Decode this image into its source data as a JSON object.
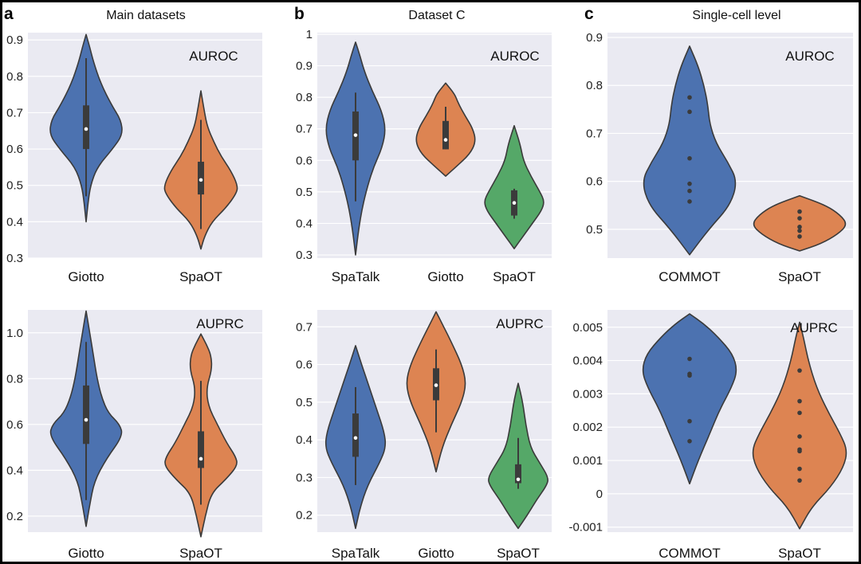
{
  "colors": {
    "blue": "#4c72b0",
    "orange": "#dd8452",
    "green": "#55a868",
    "panel_bg": "#eaeaf2",
    "grid": "#ffffff",
    "outline": "#3a3a3a"
  },
  "panels": [
    {
      "label": "a",
      "title": "Main datasets"
    },
    {
      "label": "b",
      "title": "Dataset C"
    },
    {
      "label": "c",
      "title": "Single-cell level"
    }
  ],
  "chart_data": [
    {
      "type": "violin",
      "panel": "a",
      "metric": "AUROC",
      "ylim": [
        0.3,
        0.92
      ],
      "yticks": [
        0.3,
        0.4,
        0.5,
        0.6,
        0.7,
        0.8,
        0.9
      ],
      "categories": [
        "Giotto",
        "SpaOT"
      ],
      "series": [
        {
          "category": "Giotto",
          "color": "blue",
          "min": 0.4,
          "max": 0.915,
          "q1": 0.6,
          "median": 0.655,
          "q3": 0.72,
          "whisker_low": 0.47,
          "whisker_high": 0.85,
          "density": [
            [
              0.4,
              0.0
            ],
            [
              0.45,
              0.05
            ],
            [
              0.5,
              0.12
            ],
            [
              0.55,
              0.3
            ],
            [
              0.6,
              0.72
            ],
            [
              0.64,
              1.0
            ],
            [
              0.68,
              0.95
            ],
            [
              0.72,
              0.7
            ],
            [
              0.78,
              0.4
            ],
            [
              0.84,
              0.2
            ],
            [
              0.88,
              0.1
            ],
            [
              0.915,
              0.0
            ]
          ]
        },
        {
          "category": "SpaOT",
          "color": "orange",
          "min": 0.325,
          "max": 0.76,
          "q1": 0.475,
          "median": 0.515,
          "q3": 0.565,
          "whisker_low": 0.38,
          "whisker_high": 0.68,
          "density": [
            [
              0.325,
              0.0
            ],
            [
              0.36,
              0.1
            ],
            [
              0.4,
              0.3
            ],
            [
              0.44,
              0.7
            ],
            [
              0.48,
              0.98
            ],
            [
              0.5,
              1.0
            ],
            [
              0.54,
              0.82
            ],
            [
              0.58,
              0.55
            ],
            [
              0.62,
              0.35
            ],
            [
              0.66,
              0.18
            ],
            [
              0.7,
              0.1
            ],
            [
              0.76,
              0.0
            ]
          ]
        }
      ]
    },
    {
      "type": "violin",
      "panel": "a",
      "metric": "AUPRC",
      "ylim": [
        0.13,
        1.1
      ],
      "yticks": [
        0.2,
        0.4,
        0.6,
        0.8,
        1.0
      ],
      "tick_labels": [
        "0.2",
        "0.4",
        "0.6",
        "0.8",
        "1.0"
      ],
      "categories": [
        "Giotto",
        "SpaOT"
      ],
      "series": [
        {
          "category": "Giotto",
          "color": "blue",
          "min": 0.155,
          "max": 1.095,
          "q1": 0.515,
          "median": 0.62,
          "q3": 0.77,
          "whisker_low": 0.27,
          "whisker_high": 0.96,
          "density": [
            [
              0.155,
              0.0
            ],
            [
              0.25,
              0.1
            ],
            [
              0.35,
              0.22
            ],
            [
              0.45,
              0.55
            ],
            [
              0.55,
              1.0
            ],
            [
              0.6,
              0.92
            ],
            [
              0.65,
              0.6
            ],
            [
              0.72,
              0.42
            ],
            [
              0.8,
              0.3
            ],
            [
              0.9,
              0.2
            ],
            [
              1.0,
              0.1
            ],
            [
              1.095,
              0.0
            ]
          ]
        },
        {
          "category": "SpaOT",
          "color": "orange",
          "min": 0.11,
          "max": 0.995,
          "q1": 0.41,
          "median": 0.45,
          "q3": 0.57,
          "whisker_low": 0.25,
          "whisker_high": 0.79,
          "density": [
            [
              0.11,
              0.0
            ],
            [
              0.2,
              0.12
            ],
            [
              0.3,
              0.28
            ],
            [
              0.36,
              0.68
            ],
            [
              0.42,
              1.0
            ],
            [
              0.46,
              0.95
            ],
            [
              0.52,
              0.7
            ],
            [
              0.6,
              0.45
            ],
            [
              0.68,
              0.2
            ],
            [
              0.76,
              0.15
            ],
            [
              0.84,
              0.3
            ],
            [
              0.9,
              0.28
            ],
            [
              0.95,
              0.15
            ],
            [
              0.995,
              0.0
            ]
          ]
        }
      ]
    },
    {
      "type": "violin",
      "panel": "b",
      "metric": "AUROC",
      "ylim": [
        0.29,
        1.005
      ],
      "yticks": [
        0.3,
        0.4,
        0.5,
        0.6,
        0.7,
        0.8,
        0.9,
        1.0
      ],
      "categories": [
        "SpaTalk",
        "Giotto",
        "SpaOT"
      ],
      "series": [
        {
          "category": "SpaTalk",
          "color": "blue",
          "min": 0.3,
          "max": 0.975,
          "q1": 0.6,
          "median": 0.68,
          "q3": 0.755,
          "whisker_low": 0.47,
          "whisker_high": 0.815,
          "density": [
            [
              0.3,
              0.0
            ],
            [
              0.38,
              0.1
            ],
            [
              0.45,
              0.22
            ],
            [
              0.52,
              0.4
            ],
            [
              0.58,
              0.6
            ],
            [
              0.64,
              0.88
            ],
            [
              0.7,
              1.0
            ],
            [
              0.76,
              0.85
            ],
            [
              0.82,
              0.55
            ],
            [
              0.88,
              0.3
            ],
            [
              0.93,
              0.15
            ],
            [
              0.975,
              0.0
            ]
          ]
        },
        {
          "category": "Giotto",
          "color": "orange",
          "min": 0.55,
          "max": 0.845,
          "q1": 0.635,
          "median": 0.665,
          "q3": 0.725,
          "whisker_low": 0.635,
          "whisker_high": 0.77,
          "density": [
            [
              0.55,
              0.0
            ],
            [
              0.58,
              0.35
            ],
            [
              0.62,
              0.8
            ],
            [
              0.66,
              1.0
            ],
            [
              0.7,
              0.9
            ],
            [
              0.74,
              0.65
            ],
            [
              0.78,
              0.42
            ],
            [
              0.81,
              0.3
            ],
            [
              0.845,
              0.0
            ]
          ]
        },
        {
          "category": "SpaOT",
          "color": "green",
          "min": 0.32,
          "max": 0.71,
          "q1": 0.425,
          "median": 0.465,
          "q3": 0.505,
          "whisker_low": 0.415,
          "whisker_high": 0.51,
          "density": [
            [
              0.32,
              0.0
            ],
            [
              0.36,
              0.3
            ],
            [
              0.4,
              0.6
            ],
            [
              0.44,
              0.9
            ],
            [
              0.47,
              1.0
            ],
            [
              0.5,
              0.85
            ],
            [
              0.55,
              0.55
            ],
            [
              0.6,
              0.3
            ],
            [
              0.65,
              0.2
            ],
            [
              0.71,
              0.0
            ]
          ]
        }
      ]
    },
    {
      "type": "violin",
      "panel": "b",
      "metric": "AUPRC",
      "ylim": [
        0.155,
        0.745
      ],
      "yticks": [
        0.2,
        0.3,
        0.4,
        0.5,
        0.6,
        0.7
      ],
      "categories": [
        "SpaTalk",
        "Giotto",
        "SpaOT"
      ],
      "series": [
        {
          "category": "SpaTalk",
          "color": "blue",
          "min": 0.165,
          "max": 0.65,
          "q1": 0.355,
          "median": 0.405,
          "q3": 0.47,
          "whisker_low": 0.28,
          "whisker_high": 0.54,
          "density": [
            [
              0.165,
              0.0
            ],
            [
              0.22,
              0.15
            ],
            [
              0.28,
              0.4
            ],
            [
              0.34,
              0.8
            ],
            [
              0.38,
              1.0
            ],
            [
              0.42,
              0.95
            ],
            [
              0.48,
              0.7
            ],
            [
              0.54,
              0.45
            ],
            [
              0.6,
              0.2
            ],
            [
              0.65,
              0.0
            ]
          ]
        },
        {
          "category": "Giotto",
          "color": "orange",
          "min": 0.315,
          "max": 0.74,
          "q1": 0.505,
          "median": 0.545,
          "q3": 0.59,
          "whisker_low": 0.42,
          "whisker_high": 0.64,
          "density": [
            [
              0.315,
              0.0
            ],
            [
              0.38,
              0.2
            ],
            [
              0.44,
              0.5
            ],
            [
              0.5,
              0.85
            ],
            [
              0.55,
              1.0
            ],
            [
              0.6,
              0.85
            ],
            [
              0.66,
              0.5
            ],
            [
              0.7,
              0.25
            ],
            [
              0.74,
              0.0
            ]
          ]
        },
        {
          "category": "SpaOT",
          "color": "green",
          "min": 0.165,
          "max": 0.55,
          "q1": 0.285,
          "median": 0.295,
          "q3": 0.335,
          "whisker_low": 0.27,
          "whisker_high": 0.405,
          "density": [
            [
              0.165,
              0.0
            ],
            [
              0.2,
              0.3
            ],
            [
              0.24,
              0.6
            ],
            [
              0.28,
              0.95
            ],
            [
              0.3,
              1.0
            ],
            [
              0.34,
              0.7
            ],
            [
              0.38,
              0.4
            ],
            [
              0.44,
              0.25
            ],
            [
              0.5,
              0.15
            ],
            [
              0.55,
              0.0
            ]
          ]
        }
      ]
    },
    {
      "type": "violin",
      "panel": "c",
      "metric": "AUROC",
      "ylim": [
        0.44,
        0.91
      ],
      "yticks": [
        0.5,
        0.6,
        0.7,
        0.8,
        0.9
      ],
      "categories": [
        "COMMOT",
        "SpaOT"
      ],
      "series": [
        {
          "category": "COMMOT",
          "color": "blue",
          "min": 0.447,
          "max": 0.882,
          "points": [
            0.775,
            0.745,
            0.648,
            0.595,
            0.58,
            0.558
          ],
          "density": [
            [
              0.447,
              0.0
            ],
            [
              0.5,
              0.4
            ],
            [
              0.55,
              0.85
            ],
            [
              0.6,
              1.0
            ],
            [
              0.64,
              0.8
            ],
            [
              0.68,
              0.55
            ],
            [
              0.72,
              0.42
            ],
            [
              0.76,
              0.38
            ],
            [
              0.8,
              0.3
            ],
            [
              0.84,
              0.18
            ],
            [
              0.882,
              0.0
            ]
          ]
        },
        {
          "category": "SpaOT",
          "color": "orange",
          "min": 0.455,
          "max": 0.57,
          "points": [
            0.537,
            0.523,
            0.505,
            0.497,
            0.485
          ],
          "density": [
            [
              0.455,
              0.0
            ],
            [
              0.47,
              0.45
            ],
            [
              0.49,
              0.8
            ],
            [
              0.51,
              1.0
            ],
            [
              0.53,
              0.85
            ],
            [
              0.55,
              0.55
            ],
            [
              0.57,
              0.0
            ]
          ]
        }
      ]
    },
    {
      "type": "violin",
      "panel": "c",
      "metric": "AUPRC",
      "ylim": [
        -0.00115,
        0.00552
      ],
      "yticks": [
        -0.001,
        0,
        0.001,
        0.002,
        0.003,
        0.004,
        0.005
      ],
      "tick_labels": [
        "-0.001",
        "0",
        "0.001",
        "0.002",
        "0.003",
        "0.004",
        "0.005"
      ],
      "categories": [
        "COMMOT",
        "SpaOT"
      ],
      "series": [
        {
          "category": "COMMOT",
          "color": "blue",
          "min": 0.0003,
          "max": 0.0054,
          "points": [
            0.00405,
            0.0036,
            0.00355,
            0.00218,
            0.00158
          ],
          "density": [
            [
              0.0003,
              0.0
            ],
            [
              0.001,
              0.18
            ],
            [
              0.0018,
              0.42
            ],
            [
              0.0025,
              0.62
            ],
            [
              0.0032,
              0.88
            ],
            [
              0.0037,
              1.0
            ],
            [
              0.0042,
              0.9
            ],
            [
              0.0047,
              0.6
            ],
            [
              0.0051,
              0.3
            ],
            [
              0.0054,
              0.0
            ]
          ]
        },
        {
          "category": "SpaOT",
          "color": "orange",
          "min": -0.00105,
          "max": 0.00515,
          "points": [
            0.0037,
            0.00278,
            0.00243,
            0.00172,
            0.00133,
            0.00128,
            0.00075,
            0.0004
          ],
          "density": [
            [
              -0.00105,
              0.0
            ],
            [
              -0.0004,
              0.25
            ],
            [
              0.0002,
              0.65
            ],
            [
              0.0008,
              0.92
            ],
            [
              0.0013,
              1.0
            ],
            [
              0.0018,
              0.85
            ],
            [
              0.0025,
              0.58
            ],
            [
              0.0032,
              0.35
            ],
            [
              0.004,
              0.18
            ],
            [
              0.0047,
              0.08
            ],
            [
              0.00515,
              0.0
            ]
          ]
        }
      ]
    }
  ]
}
